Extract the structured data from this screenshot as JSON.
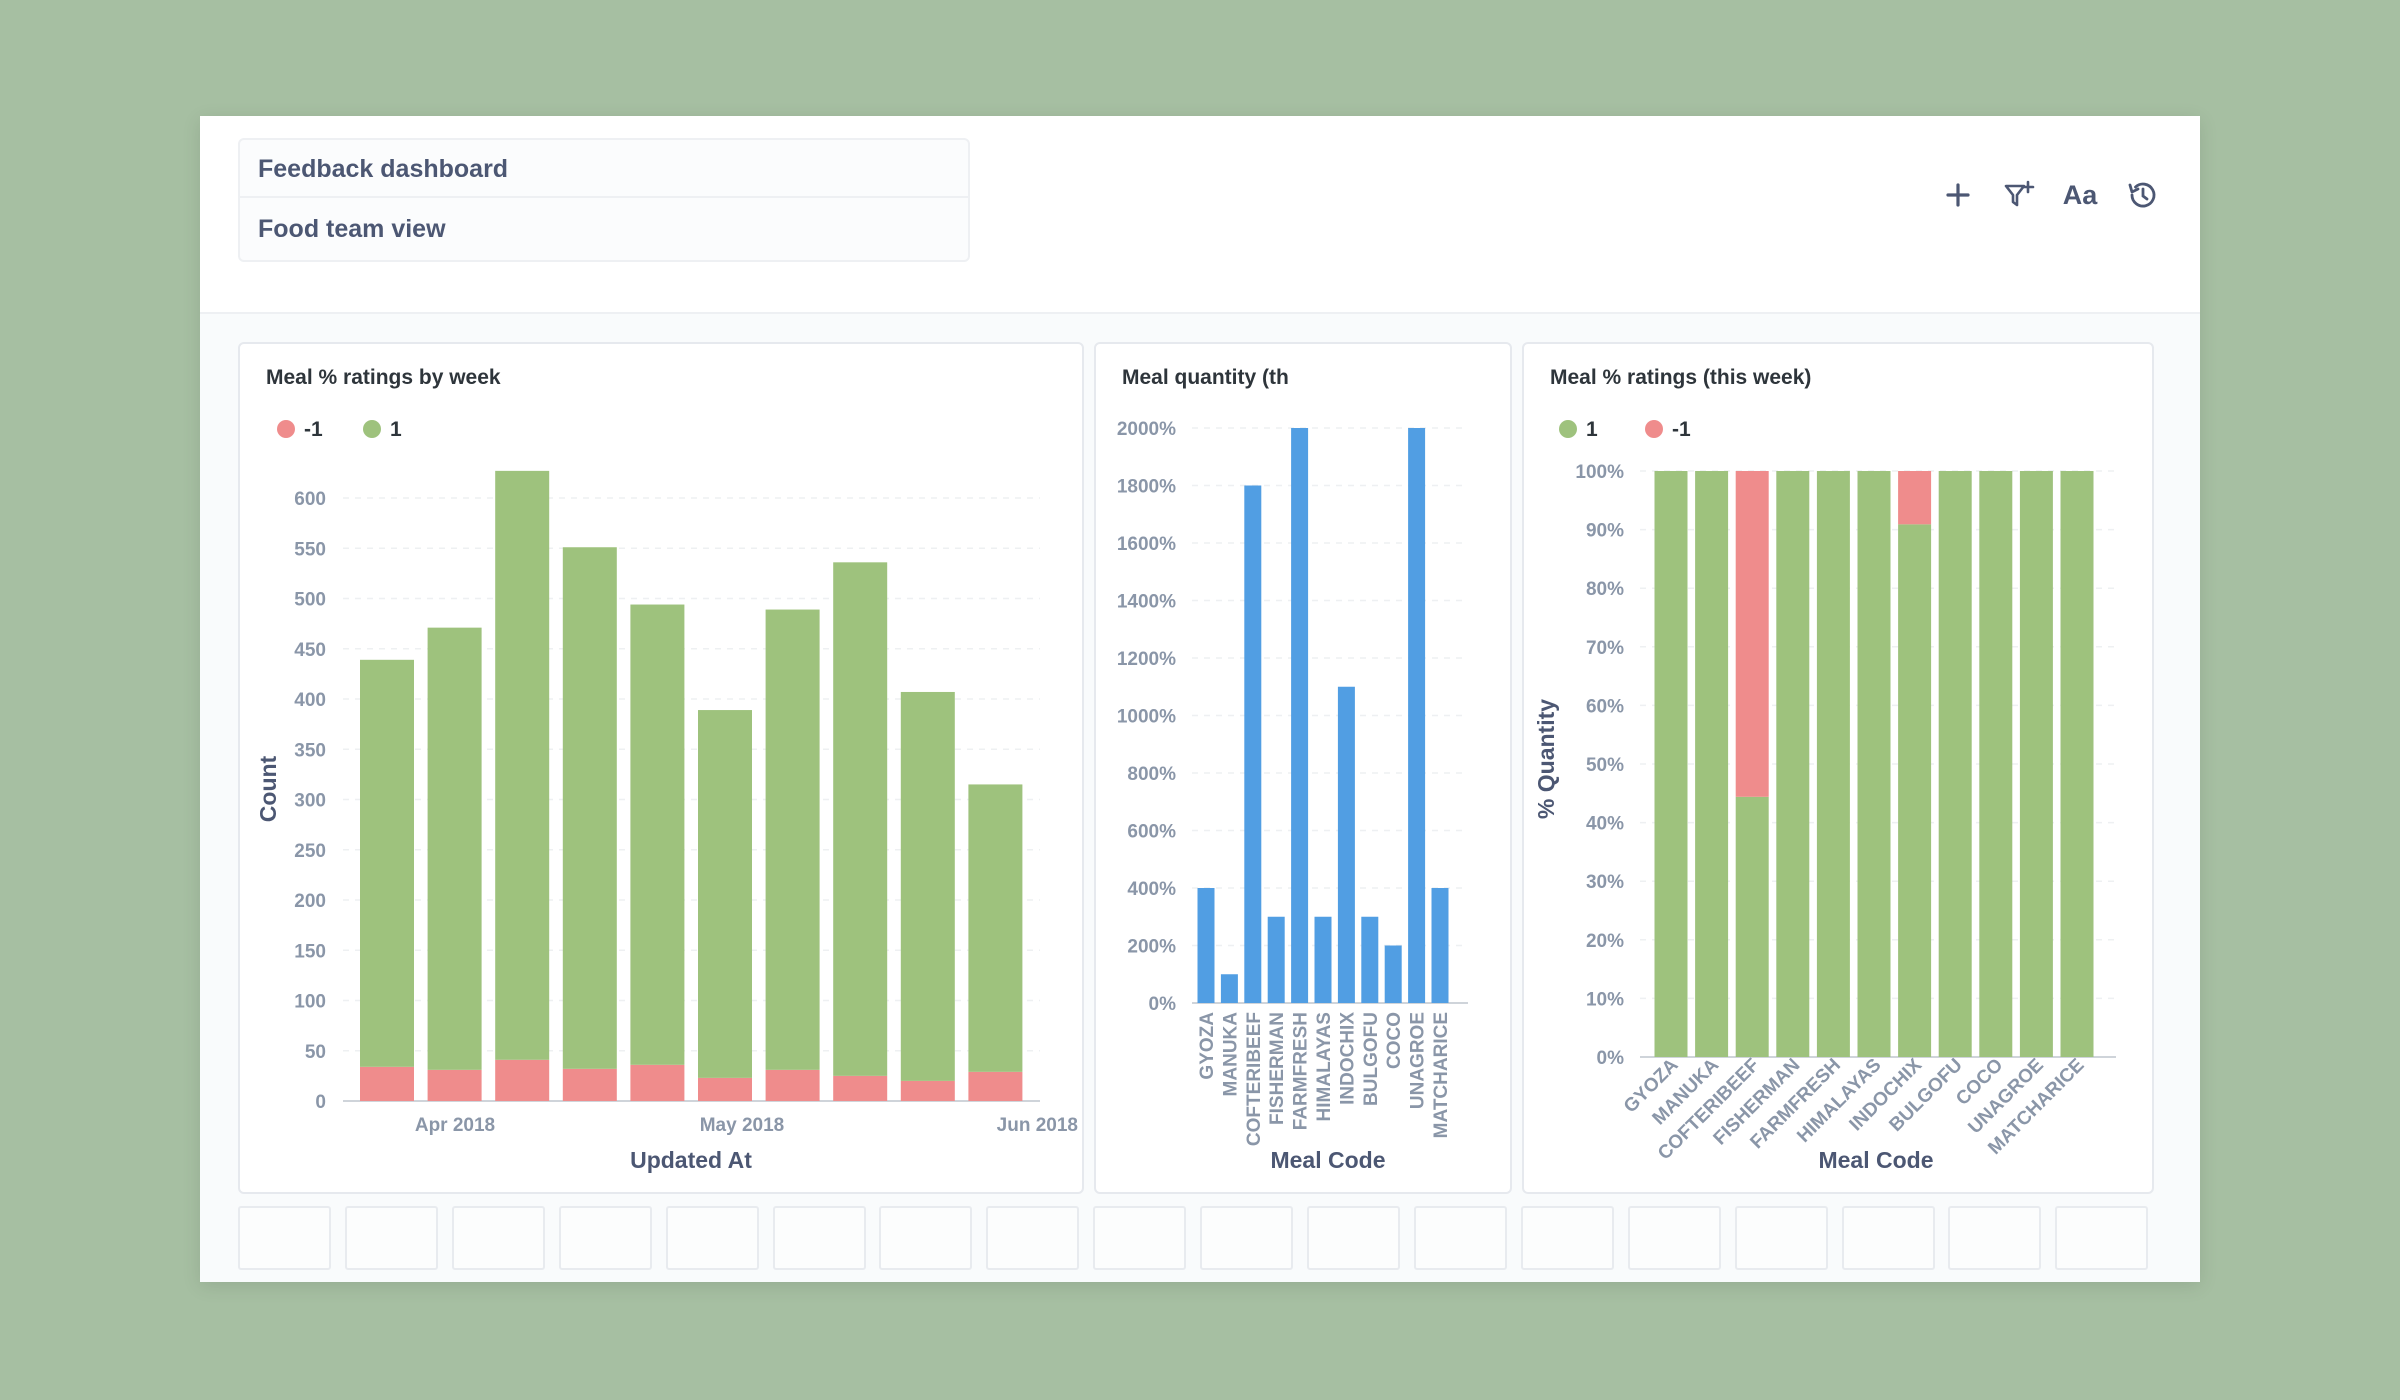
{
  "header": {
    "title": "Feedback dashboard",
    "subtitle": "Food team view",
    "icons": [
      "plus-icon",
      "filter-icon",
      "text-icon",
      "history-icon"
    ],
    "text_label": "Aa"
  },
  "colors": {
    "green": "#9ec27d",
    "red": "#ef8c8c",
    "blue": "#519ee3"
  },
  "charts": [
    {
      "title": "Meal % ratings by week",
      "legend": [
        {
          "label": "-1",
          "color": "#ef8c8c"
        },
        {
          "label": "1",
          "color": "#9ec27d"
        }
      ],
      "ytitle": "Count",
      "xtitle": "Updated At",
      "yticks": [
        "0",
        "50",
        "100",
        "150",
        "200",
        "250",
        "300",
        "350",
        "400",
        "450",
        "500",
        "550",
        "600"
      ],
      "xticks": [
        "Apr 2018",
        "May 2018",
        "Jun 2018"
      ]
    },
    {
      "title": "Meal quantity (this week)",
      "xtitle": "Meal Code",
      "yticks": [
        "0%",
        "200%",
        "400%",
        "600%",
        "800%",
        "1000%",
        "1200%",
        "1400%",
        "1600%",
        "1800%",
        "2000%"
      ]
    },
    {
      "title": "Meal % ratings (this week)",
      "legend": [
        {
          "label": "1",
          "color": "#9ec27d"
        },
        {
          "label": "-1",
          "color": "#ef8c8c"
        }
      ],
      "ytitle": "% Quantity",
      "xtitle": "Meal Code",
      "yticks": [
        "0%",
        "10%",
        "20%",
        "30%",
        "40%",
        "50%",
        "60%",
        "70%",
        "80%",
        "90%",
        "100%"
      ]
    }
  ],
  "chart_data": [
    {
      "type": "bar",
      "stacked": true,
      "title": "Meal % ratings by week",
      "xlabel": "Updated At",
      "ylabel": "Count",
      "x": [
        "2018-03-26",
        "2018-04-02",
        "2018-04-09",
        "2018-04-16",
        "2018-04-23",
        "2018-04-30",
        "2018-05-07",
        "2018-05-14",
        "2018-05-21",
        "2018-05-28"
      ],
      "series": [
        {
          "name": "-1",
          "values": [
            34,
            31,
            41,
            32,
            36,
            23,
            31,
            25,
            20,
            29
          ]
        },
        {
          "name": "1",
          "values": [
            405,
            440,
            586,
            519,
            458,
            366,
            458,
            511,
            387,
            286
          ]
        }
      ],
      "ylim": [
        0,
        630
      ],
      "grid": true,
      "legend": "top-left"
    },
    {
      "type": "bar",
      "title": "Meal quantity (this week)",
      "xlabel": "Meal Code",
      "ylabel": "",
      "categories": [
        "GYOZA",
        "MANUKA",
        "COFTERIBEEF",
        "FISHERMAN",
        "FARMFRESH",
        "HIMALAYAS",
        "INDOCHIX",
        "BULGOFU",
        "COCO",
        "UNAGROE",
        "MATCHARICE"
      ],
      "series": [
        {
          "values": [
            400,
            100,
            1800,
            300,
            2000,
            300,
            1100,
            300,
            200,
            2000,
            400
          ]
        }
      ],
      "ylim": [
        0,
        2000
      ],
      "grid": true
    },
    {
      "type": "bar",
      "stacked": true,
      "title": "Meal % ratings (this week)",
      "xlabel": "Meal Code",
      "ylabel": "% Quantity",
      "categories": [
        "GYOZA",
        "MANUKA",
        "COFTERIBEEF",
        "FISHERMAN",
        "FARMFRESH",
        "HIMALAYAS",
        "INDOCHIX",
        "BULGOFU",
        "COCO",
        "UNAGROE",
        "MATCHARICE"
      ],
      "series": [
        {
          "name": "1",
          "values": [
            100,
            100,
            44.4,
            100,
            100,
            100,
            90.9,
            100,
            100,
            100,
            100
          ]
        },
        {
          "name": "-1",
          "values": [
            0,
            0,
            55.6,
            0,
            0,
            0,
            9.1,
            0,
            0,
            0,
            0
          ]
        }
      ],
      "ylim": [
        0,
        100
      ],
      "grid": true,
      "legend": "top-left"
    }
  ]
}
